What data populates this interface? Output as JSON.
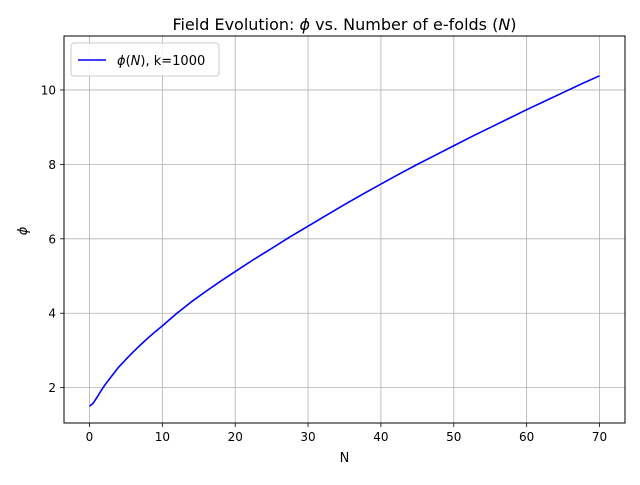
{
  "chart_data": {
    "type": "line",
    "title_plain": "Field Evolution: ",
    "title_phi": "ϕ",
    "title_mid": " vs. Number of e-folds (",
    "title_N": "N",
    "title_end": ")",
    "xlabel": "N",
    "ylabel": "ϕ",
    "xlim": [
      -3.5,
      73.5
    ],
    "ylim": [
      1.05,
      11.45
    ],
    "xticks": [
      0,
      10,
      20,
      30,
      40,
      50,
      60,
      70
    ],
    "yticks": [
      2,
      4,
      6,
      8,
      10
    ],
    "grid": true,
    "legend_position": "upper-left",
    "series": [
      {
        "name_phi": "ϕ",
        "name_paren_open": "(",
        "name_N": "N",
        "name_rest": "), k=1000",
        "color": "#0000ff",
        "x": [
          0,
          0.5,
          1,
          1.5,
          2,
          2.5,
          3,
          4,
          5,
          6,
          7,
          8,
          9,
          10,
          12,
          14,
          16,
          18,
          20,
          22.5,
          25,
          27.5,
          30,
          32.5,
          35,
          37.5,
          40,
          42.5,
          45,
          47.5,
          50,
          52.5,
          55,
          57.5,
          60,
          62.5,
          65,
          67.5,
          70
        ],
        "y": [
          1.5,
          1.58,
          1.73,
          1.89,
          2.04,
          2.17,
          2.3,
          2.55,
          2.76,
          2.96,
          3.15,
          3.33,
          3.5,
          3.66,
          4.0,
          4.31,
          4.59,
          4.86,
          5.12,
          5.44,
          5.74,
          6.05,
          6.34,
          6.63,
          6.92,
          7.2,
          7.47,
          7.74,
          8.0,
          8.25,
          8.5,
          8.75,
          8.99,
          9.23,
          9.47,
          9.7,
          9.93,
          10.16,
          10.38
        ]
      }
    ]
  }
}
